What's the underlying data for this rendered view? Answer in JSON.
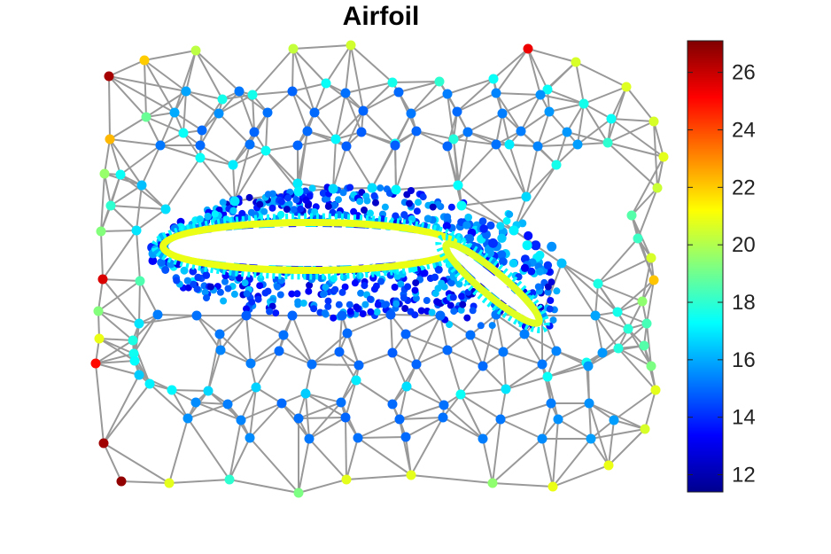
{
  "chart_data": {
    "type": "scatter",
    "title": "Airfoil",
    "xlabel": "",
    "ylabel": "",
    "grid": false,
    "axes_visible": false,
    "colormap": "jet",
    "color_range": [
      11.4,
      27.1
    ],
    "colorbar": {
      "location": "right",
      "ticks": [
        12,
        14,
        16,
        18,
        20,
        22,
        24,
        26
      ],
      "tick_labels": [
        "12",
        "14",
        "16",
        "18",
        "20",
        "22",
        "24",
        "26"
      ]
    },
    "mesh_color": "#999999",
    "points": {
      "x": [
        123,
        163,
        221,
        331,
        396,
        596,
        650,
        707,
        738,
        749,
        742,
        713,
        720,
        735,
        738,
        725,
        730,
        727,
        735,
        740,
        728,
        687,
        624,
        556,
        464,
        391,
        337,
        259,
        191,
        137,
        117,
        108,
        112,
        111,
        116,
        114,
        125,
        118,
        124,
        165,
        251,
        285,
        368,
        443,
        496,
        557,
        618,
        659,
        690,
        686,
        628,
        575,
        512,
        446,
        379,
        300,
        226,
        136,
        154,
        158,
        157,
        150,
        151,
        152,
        157,
        169,
        194,
        235,
        289,
        345,
        402,
        459,
        520,
        571,
        618,
        662,
        698,
        709,
        697,
        675,
        634,
        580,
        521,
        447,
        376,
        336,
        263,
        207,
        160,
        187,
        265,
        337,
        420,
        517,
        594,
        210,
        270,
        330,
        390,
        450,
        505,
        560,
        610,
        197,
        247,
        302,
        355,
        410,
        464,
        516,
        567,
        620,
        228,
        287,
        347,
        408,
        470,
        528,
        588,
        640,
        181,
        226,
        282,
        336,
        391,
        446,
        505,
        560,
        607,
        652,
        178,
        222,
        278,
        330,
        386,
        441,
        497,
        560,
        612,
        672,
        248,
        320,
        392,
        458,
        531,
        592,
        249,
        315,
        383,
        443,
        505,
        568,
        628,
        680,
        283,
        352,
        405,
        470,
        545,
        612,
        664,
        221,
        257,
        318,
        385,
        443,
        501,
        622,
        665,
        212,
        272,
        337,
        390,
        451,
        500,
        565,
        630,
        693,
        282,
        349,
        404,
        458,
        545,
        612,
        667
      ],
      "y": [
        86,
        68,
        57,
        55,
        51,
        55,
        70,
        98,
        137,
        177,
        212,
        243,
        269,
        291,
        316,
        340,
        365,
        390,
        413,
        440,
        484,
        525,
        549,
        545,
        536,
        541,
        556,
        541,
        545,
        543,
        500,
        410,
        382,
        351,
        315,
        261,
        232,
        196,
        157,
        132,
        112,
        107,
        94,
        93,
        92,
        89,
        101,
        117,
        134,
        161,
        186,
        163,
        157,
        162,
        157,
        170,
        178,
        197,
        260,
        317,
        365,
        384,
        399,
        407,
        423,
        433,
        440,
        441,
        437,
        444,
        429,
        436,
        445,
        439,
        425,
        409,
        393,
        371,
        352,
        320,
        297,
        260,
        232,
        214,
        213,
        207,
        186,
        150,
        209,
        236,
        227,
        216,
        212,
        209,
        222,
        103,
        103,
        103,
        105,
        104,
        106,
        105,
        107,
        127,
        128,
        127,
        127,
        125,
        128,
        126,
        128,
        126,
        147,
        149,
        148,
        149,
        148,
        149,
        148,
        149,
        164,
        164,
        163,
        164,
        165,
        164,
        165,
        163,
        165,
        163,
        355,
        356,
        356,
        356,
        356,
        355,
        356,
        355,
        356,
        356,
        377,
        378,
        376,
        377,
        378,
        377,
        395,
        396,
        397,
        398,
        395,
        397,
        396,
        398,
        410,
        411,
        412,
        411,
        413,
        411,
        413,
        454,
        456,
        455,
        454,
        456,
        457,
        455,
        455,
        472,
        474,
        472,
        471,
        473,
        471,
        473,
        473,
        474,
        494,
        495,
        494,
        493,
        495,
        495,
        495
      ],
      "values": [
        26.5,
        22.0,
        20.2,
        20.3,
        20.5,
        25.4,
        20.6,
        20.7,
        20.6,
        20.8,
        20.4,
        18.6,
        18.2,
        20.6,
        22.1,
        19.5,
        18.4,
        18.6,
        19.2,
        20.8,
        20.6,
        20.9,
        20.9,
        19.5,
        20.8,
        20.8,
        19.2,
        18.0,
        20.8,
        26.8,
        26.6,
        25.0,
        20.9,
        19.3,
        25.7,
        19.3,
        18.0,
        19.6,
        22.3,
        18.9,
        17.6,
        17.6,
        17.4,
        17.6,
        18.0,
        17.4,
        17.4,
        17.6,
        17.4,
        18.0,
        17.6,
        17.0,
        17.8,
        17.4,
        17.2,
        17.4,
        17.4,
        17.4,
        16.9,
        18.5,
        16.9,
        17.7,
        17.5,
        17.3,
        16.5,
        17.1,
        17.2,
        16.7,
        16.6,
        16.5,
        17.0,
        16.8,
        17.4,
        16.9,
        17.4,
        17.5,
        17.8,
        17.9,
        17.6,
        17.7,
        16.3,
        17.1,
        17.4,
        17.2,
        16.7,
        17.0,
        17.0,
        17.4,
        16.3,
        16.8,
        16.9,
        17.1,
        16.8,
        17.3,
        16.7,
        15.9,
        15.2,
        14.9,
        15.1,
        15.0,
        15.3,
        15.4,
        15.6,
        16.0,
        15.6,
        15.1,
        15.0,
        14.9,
        15.2,
        15.0,
        15.3,
        15.7,
        15.0,
        14.9,
        15.0,
        14.8,
        14.9,
        15.2,
        15.3,
        15.7,
        15.2,
        15.0,
        15.1,
        14.9,
        14.8,
        14.8,
        14.9,
        15.1,
        15.4,
        15.8,
        15.3,
        15.1,
        14.8,
        14.9,
        14.9,
        14.8,
        15.0,
        15.2,
        15.5,
        15.9,
        15.2,
        15.1,
        15.0,
        14.9,
        15.1,
        15.3,
        15.4,
        15.0,
        14.9,
        14.8,
        15.0,
        15.2,
        15.4,
        15.7,
        15.3,
        15.1,
        15.0,
        14.9,
        15.0,
        15.2,
        15.7,
        15.5,
        15.3,
        15.0,
        15.1,
        15.0,
        15.1,
        15.3,
        15.6,
        15.6,
        15.4,
        15.1,
        14.9,
        15.0,
        15.1,
        15.2,
        15.6,
        15.8,
        15.5,
        15.2,
        15.1,
        15.0,
        15.3,
        15.5,
        15.8
      ]
    },
    "elements": [
      {
        "name": "main-airfoil-surface",
        "center": [
          350,
          278
        ],
        "semi_axes": [
          160,
          22
        ],
        "rotation": 0,
        "value": 20.9
      },
      {
        "name": "flap-surface",
        "center": [
          556,
          320
        ],
        "semi_axes": [
          62,
          8
        ],
        "rotation": 40,
        "value": 20.7
      }
    ],
    "dense_region": {
      "center": [
        400,
        285
      ],
      "value": 15.0
    }
  }
}
